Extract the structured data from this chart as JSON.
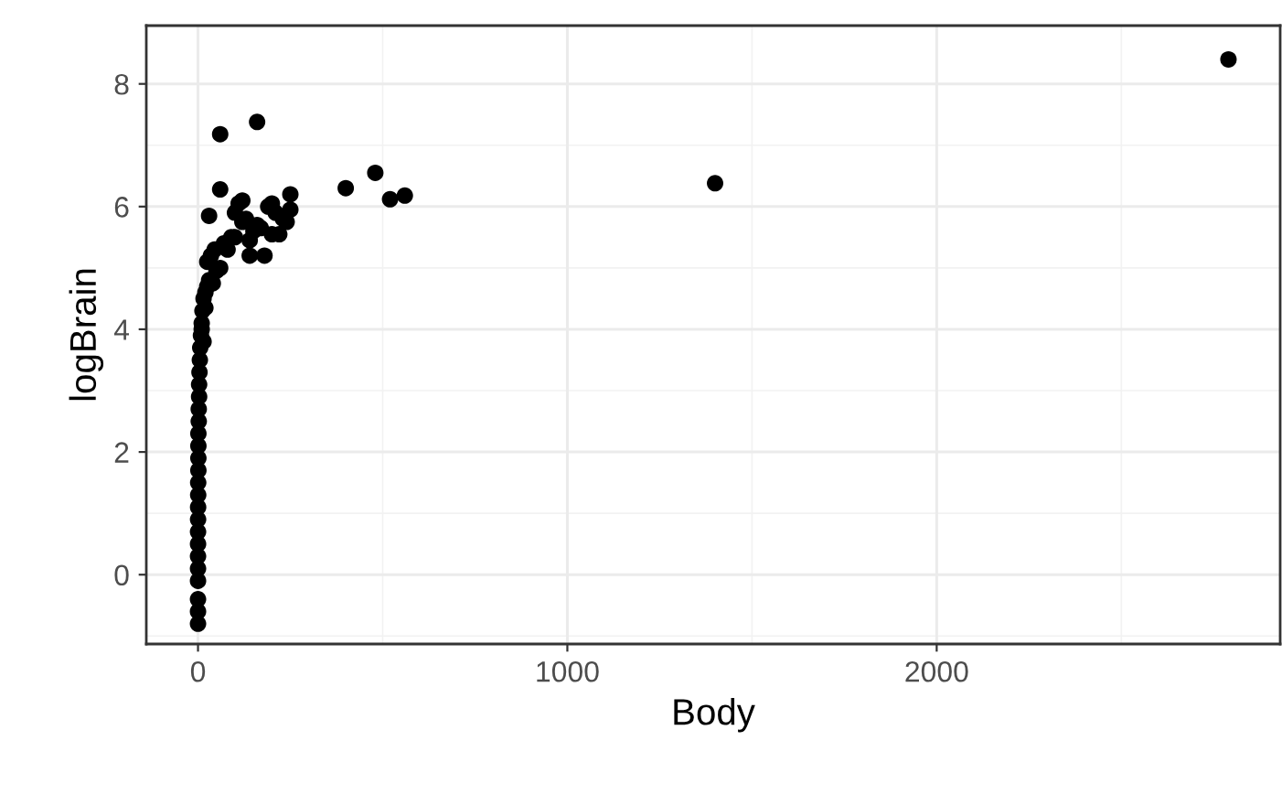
{
  "chart_data": {
    "type": "scatter",
    "xlabel": "Body",
    "ylabel": "logBrain",
    "xlim": [
      -140,
      2930
    ],
    "ylim": [
      -1.13,
      8.95
    ],
    "xticks": [
      0,
      1000,
      2000
    ],
    "yticks": [
      0,
      2,
      4,
      6,
      8
    ],
    "grid": true,
    "marker": "circle",
    "series": [
      {
        "color": "#000000",
        "x": [
          2790,
          1400,
          480,
          400,
          520,
          560,
          160,
          60,
          60,
          30,
          35,
          45,
          70,
          90,
          100,
          110,
          120,
          130,
          140,
          150,
          160,
          180,
          190,
          200,
          210,
          220,
          230,
          250,
          250,
          240,
          200,
          170,
          140,
          120,
          100,
          80,
          60,
          50,
          40,
          30,
          25,
          20,
          15,
          12,
          10,
          8,
          6,
          5,
          4,
          3,
          3,
          2,
          2,
          1,
          1,
          1,
          1,
          0.5,
          0.5,
          0.3,
          0.2,
          0.1,
          0.1,
          0.05,
          0.05,
          0.02,
          0.01,
          0.01,
          0.01,
          15,
          20,
          25,
          10
        ],
        "values": [
          8.4,
          6.38,
          6.55,
          6.3,
          6.12,
          6.18,
          7.38,
          7.18,
          6.28,
          5.85,
          5.2,
          5.3,
          5.4,
          5.5,
          5.9,
          6.05,
          6.1,
          5.8,
          5.2,
          5.6,
          5.7,
          5.2,
          6.0,
          5.55,
          5.9,
          5.55,
          5.8,
          6.2,
          5.95,
          5.75,
          6.05,
          5.65,
          5.45,
          5.75,
          5.5,
          5.3,
          5.0,
          4.95,
          4.75,
          4.8,
          4.7,
          4.6,
          4.5,
          4.3,
          4.1,
          3.9,
          3.7,
          3.5,
          3.3,
          3.1,
          2.9,
          2.7,
          2.5,
          2.3,
          2.1,
          1.9,
          1.7,
          1.5,
          1.3,
          1.1,
          0.9,
          0.7,
          0.5,
          0.3,
          0.1,
          -0.1,
          -0.4,
          -0.6,
          -0.8,
          3.8,
          4.35,
          5.1,
          4.0
        ]
      }
    ]
  }
}
